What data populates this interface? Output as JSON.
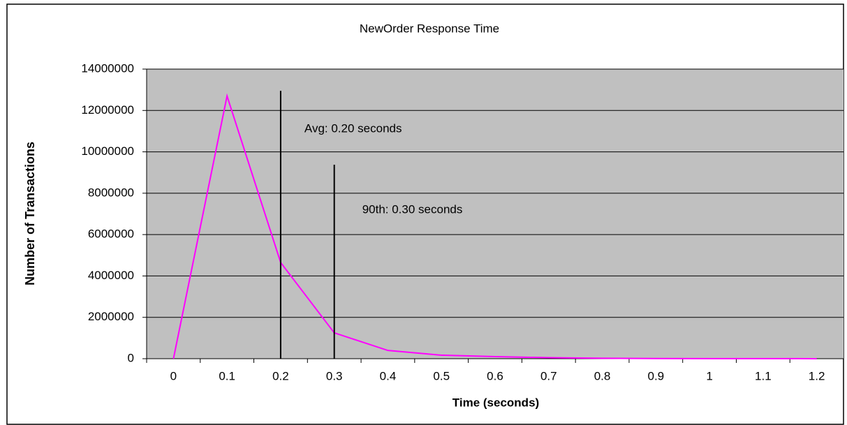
{
  "chart_data": {
    "type": "line",
    "title": "NewOrder Response Time",
    "x_label": "Time (seconds)",
    "y_label": "Number of Transactions",
    "x": [
      0,
      0.1,
      0.2,
      0.3,
      0.4,
      0.5,
      0.6,
      0.7,
      0.8,
      0.9,
      1,
      1.1,
      1.2
    ],
    "series": [
      {
        "name": "NewOrder",
        "color": "#ff00ff",
        "values": [
          0,
          12700000,
          4650000,
          1250000,
          400000,
          170000,
          100000,
          50000,
          20000,
          10000,
          5000,
          3000,
          2000
        ]
      }
    ],
    "xlim": [
      -0.05,
      1.25
    ],
    "xticks": [
      0,
      0.1,
      0.2,
      0.3,
      0.4,
      0.5,
      0.6,
      0.7,
      0.8,
      0.9,
      1,
      1.1,
      1.2
    ],
    "ylim": [
      0,
      14000000
    ],
    "yticks": [
      0,
      2000000,
      4000000,
      6000000,
      8000000,
      10000000,
      12000000,
      14000000
    ],
    "grid": true,
    "reference_lines": [
      {
        "x": 0.2,
        "top": 12950000,
        "label": "Avg: 0.20 seconds"
      },
      {
        "x": 0.3,
        "top": 9380000,
        "label": "90th: 0.30 seconds"
      }
    ]
  }
}
